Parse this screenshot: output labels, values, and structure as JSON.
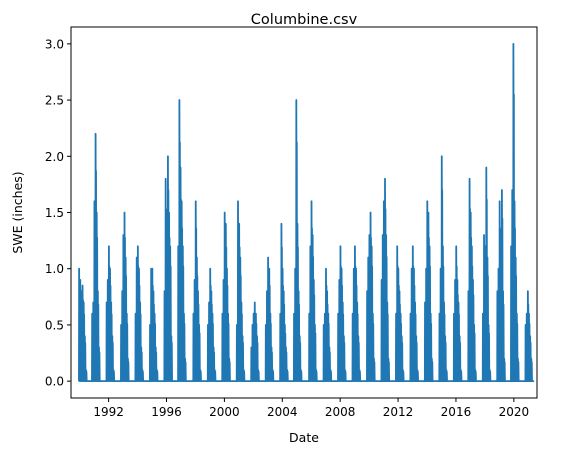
{
  "chart_data": {
    "type": "line",
    "title": "Columbine.csv",
    "xlabel": "Date",
    "ylabel": "SWE (inches)",
    "x_ticks": [
      "1992",
      "1996",
      "2000",
      "2004",
      "2008",
      "2012",
      "2016",
      "2020"
    ],
    "y_ticks": [
      "0.0",
      "0.5",
      "1.0",
      "1.5",
      "2.0",
      "2.5",
      "3.0"
    ],
    "xlim": [
      1989.4,
      2021.6
    ],
    "ylim": [
      -0.15,
      3.15
    ],
    "grid": false,
    "series": [
      {
        "color": "#1f77b4",
        "seasons": [
          {
            "start": 1989.95,
            "values": [
              1.0,
              0.9,
              0.8,
              0.85,
              0.7,
              0.4,
              0.1
            ]
          },
          {
            "start": 1990.85,
            "values": [
              0.6,
              0.7,
              1.6,
              2.2,
              1.5,
              0.8,
              0.3
            ]
          },
          {
            "start": 1991.85,
            "values": [
              0.7,
              0.9,
              1.2,
              1.0,
              0.7,
              0.4,
              0.1
            ]
          },
          {
            "start": 1992.85,
            "values": [
              0.5,
              0.8,
              1.3,
              1.5,
              1.1,
              0.6,
              0.2
            ]
          },
          {
            "start": 1993.85,
            "values": [
              0.6,
              1.1,
              1.2,
              1.0,
              0.7,
              0.3,
              0.1
            ]
          },
          {
            "start": 1994.85,
            "values": [
              0.5,
              1.0,
              1.0,
              0.8,
              0.6,
              0.3,
              0.1
            ]
          },
          {
            "start": 1995.85,
            "values": [
              0.8,
              1.8,
              1.4,
              2.0,
              1.5,
              1.2,
              0.4
            ]
          },
          {
            "start": 1996.8,
            "values": [
              1.2,
              2.5,
              1.9,
              1.6,
              1.2,
              0.6,
              0.2
            ]
          },
          {
            "start": 1997.85,
            "values": [
              0.6,
              0.9,
              1.6,
              1.1,
              0.8,
              0.5,
              0.1
            ]
          },
          {
            "start": 1998.85,
            "values": [
              0.5,
              0.7,
              1.0,
              0.8,
              0.6,
              0.3,
              0.1
            ]
          },
          {
            "start": 1999.85,
            "values": [
              0.6,
              0.9,
              1.5,
              1.4,
              1.0,
              0.6,
              0.2
            ]
          },
          {
            "start": 2000.85,
            "values": [
              0.5,
              1.6,
              1.4,
              1.1,
              0.7,
              0.4,
              0.1
            ]
          },
          {
            "start": 2001.85,
            "values": [
              0.3,
              0.5,
              0.6,
              0.7,
              0.6,
              0.4,
              0.1
            ]
          },
          {
            "start": 2002.85,
            "values": [
              0.5,
              0.8,
              1.1,
              1.0,
              0.6,
              0.3,
              0.1
            ]
          },
          {
            "start": 2003.85,
            "values": [
              0.6,
              1.4,
              1.0,
              0.8,
              0.5,
              0.3,
              0.1
            ]
          },
          {
            "start": 2004.8,
            "values": [
              0.6,
              1.0,
              2.5,
              1.4,
              0.8,
              0.4,
              0.1
            ]
          },
          {
            "start": 2005.85,
            "values": [
              0.6,
              1.2,
              1.6,
              1.3,
              0.9,
              0.5,
              0.1
            ]
          },
          {
            "start": 2006.85,
            "values": [
              0.5,
              0.6,
              1.0,
              0.8,
              0.6,
              0.3,
              0.1
            ]
          },
          {
            "start": 2007.85,
            "values": [
              0.6,
              0.9,
              1.2,
              1.0,
              0.7,
              0.4,
              0.1
            ]
          },
          {
            "start": 2008.85,
            "values": [
              0.6,
              1.0,
              1.2,
              1.0,
              0.7,
              0.4,
              0.1
            ]
          },
          {
            "start": 2009.85,
            "values": [
              0.8,
              1.1,
              1.3,
              1.5,
              1.2,
              0.6,
              0.2
            ]
          },
          {
            "start": 2010.85,
            "values": [
              0.9,
              1.3,
              1.6,
              1.8,
              1.3,
              0.7,
              0.2
            ]
          },
          {
            "start": 2011.85,
            "values": [
              0.6,
              1.2,
              1.0,
              0.8,
              0.6,
              0.4,
              0.1
            ]
          },
          {
            "start": 2012.85,
            "values": [
              0.6,
              1.0,
              1.2,
              1.0,
              0.7,
              0.4,
              0.1
            ]
          },
          {
            "start": 2013.85,
            "values": [
              0.7,
              1.0,
              1.6,
              1.5,
              1.2,
              0.6,
              0.2
            ]
          },
          {
            "start": 2014.85,
            "values": [
              0.6,
              1.0,
              2.0,
              1.2,
              0.7,
              0.4,
              0.1
            ]
          },
          {
            "start": 2015.85,
            "values": [
              0.6,
              0.9,
              1.2,
              0.9,
              0.7,
              0.4,
              0.1
            ]
          },
          {
            "start": 2016.85,
            "values": [
              0.8,
              1.8,
              1.5,
              1.2,
              0.9,
              0.5,
              0.1
            ]
          },
          {
            "start": 2017.85,
            "values": [
              0.6,
              1.3,
              1.2,
              1.9,
              1.1,
              0.5,
              0.1
            ]
          },
          {
            "start": 2018.85,
            "values": [
              0.8,
              1.0,
              1.6,
              1.2,
              1.7,
              0.8,
              0.2
            ]
          },
          {
            "start": 2019.8,
            "values": [
              1.2,
              1.7,
              3.0,
              1.6,
              1.1,
              0.6,
              0.2
            ]
          },
          {
            "start": 2020.8,
            "values": [
              0.5,
              0.6,
              0.8,
              0.6,
              0.4,
              0.2,
              0.0
            ]
          }
        ]
      }
    ]
  }
}
